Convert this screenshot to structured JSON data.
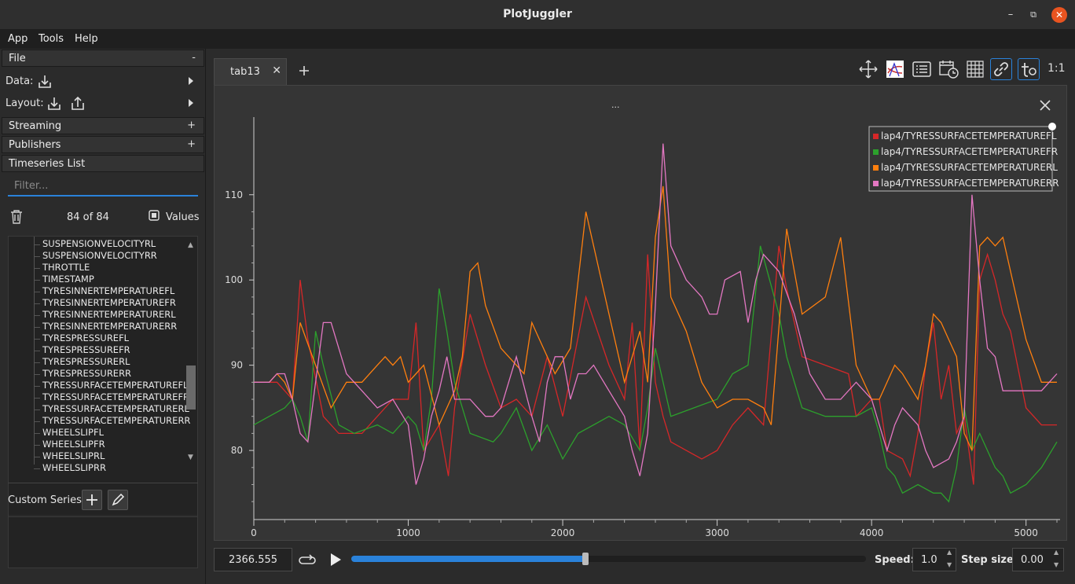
{
  "window": {
    "title": "PlotJuggler"
  },
  "menu": {
    "items": [
      "App",
      "Tools",
      "Help"
    ]
  },
  "left": {
    "file": {
      "label": "File",
      "toggle": "-"
    },
    "data_label": "Data:",
    "layout_label": "Layout:",
    "streaming": {
      "label": "Streaming",
      "toggle": "+"
    },
    "publishers": {
      "label": "Publishers",
      "toggle": "+"
    },
    "timeseries": {
      "label": "Timeseries List"
    },
    "filter_placeholder": "Filter...",
    "count": "84 of 84",
    "values_label": "Values",
    "series_items": [
      "SUSPENSIONVELOCITYRL",
      "SUSPENSIONVELOCITYRR",
      "THROTTLE",
      "TIMESTAMP",
      "TYRESINNERTEMPERATUREFL",
      "TYRESINNERTEMPERATUREFR",
      "TYRESINNERTEMPERATURERL",
      "TYRESINNERTEMPERATURERR",
      "TYRESPRESSUREFL",
      "TYRESPRESSUREFR",
      "TYRESPRESSURERL",
      "TYRESPRESSURERR",
      "TYRESSURFACETEMPERATUREFL",
      "TYRESSURFACETEMPERATUREFR",
      "TYRESSURFACETEMPERATURERL",
      "TYRESSURFACETEMPERATURERR",
      "WHEELSLIPFL",
      "WHEELSLIPFR",
      "WHEELSLIPRL",
      "WHEELSLIPRR"
    ],
    "custom_series_label": "Custom Series:"
  },
  "tabs": [
    {
      "label": "tab13"
    }
  ],
  "toolbar": {
    "ratio_label": "1:1",
    "plot_title": "..."
  },
  "playback": {
    "time": "2366.555",
    "speed_label": "Speed:",
    "speed": "1.0",
    "step_label": "Step size:",
    "step": "0.00",
    "progress": 0.455
  },
  "colors": {
    "accent": "#2a82da",
    "fl": "#d62728",
    "fr": "#2ca02c",
    "rl": "#ff7f0e",
    "rr": "#e377c2"
  },
  "chart_data": {
    "type": "line",
    "title": "",
    "xlabel": "",
    "ylabel": "",
    "xlim": [
      0,
      5200
    ],
    "ylim": [
      73,
      118
    ],
    "xticks": [
      0,
      1000,
      2000,
      3000,
      4000,
      5000
    ],
    "yticks": [
      80,
      90,
      100,
      110
    ],
    "legend_position": "top-right",
    "series": [
      {
        "name": "lap4/TYRESSURFACETEMPERATUREFL",
        "color": "#d62728",
        "x": [
          0,
          150,
          250,
          300,
          350,
          450,
          550,
          700,
          900,
          1000,
          1050,
          1100,
          1200,
          1260,
          1300,
          1400,
          1500,
          1600,
          1700,
          1800,
          1900,
          2000,
          2150,
          2300,
          2400,
          2450,
          2500,
          2550,
          2600,
          2650,
          2700,
          2800,
          2900,
          3000,
          3100,
          3200,
          3300,
          3400,
          3450,
          3550,
          3700,
          3850,
          3900,
          4000,
          4050,
          4100,
          4200,
          4250,
          4300,
          4350,
          4400,
          4450,
          4500,
          4550,
          4600,
          4660,
          4700,
          4750,
          4800,
          4850,
          4900,
          5000,
          5100,
          5200
        ],
        "values": [
          88,
          88,
          86,
          100,
          93,
          84,
          82,
          82,
          86,
          86,
          95,
          80,
          83,
          77,
          85,
          96,
          90,
          85,
          86,
          84,
          91,
          84,
          98,
          90,
          86,
          95,
          80,
          103,
          88,
          84,
          81,
          80,
          79,
          80,
          83,
          85,
          83,
          104,
          99,
          91,
          90,
          89,
          84,
          86,
          86,
          80,
          79,
          77,
          82,
          90,
          95,
          86,
          90,
          82,
          84,
          76,
          100,
          103,
          100,
          96,
          94,
          85,
          83,
          83
        ]
      },
      {
        "name": "lap4/TYRESSURFACETEMPERATUREFR",
        "color": "#2ca02c",
        "x": [
          0,
          100,
          200,
          250,
          300,
          350,
          400,
          450,
          550,
          650,
          800,
          900,
          1000,
          1050,
          1100,
          1150,
          1200,
          1250,
          1300,
          1400,
          1550,
          1600,
          1700,
          1800,
          1900,
          2000,
          2100,
          2300,
          2400,
          2500,
          2550,
          2600,
          2700,
          2850,
          3000,
          3100,
          3200,
          3280,
          3400,
          3450,
          3550,
          3700,
          3800,
          3900,
          4000,
          4050,
          4100,
          4150,
          4200,
          4300,
          4400,
          4450,
          4500,
          4550,
          4600,
          4650,
          4700,
          4800,
          4850,
          4900,
          5000,
          5100,
          5200
        ],
        "values": [
          83,
          84,
          85,
          86,
          84,
          81,
          94,
          90,
          83,
          82,
          83,
          82,
          84,
          83,
          80,
          86,
          99,
          94,
          88,
          82,
          81,
          82,
          85,
          80,
          83,
          79,
          82,
          84,
          83,
          80,
          85,
          92,
          84,
          85,
          86,
          89,
          90,
          104,
          96,
          91,
          85,
          84,
          84,
          84,
          85,
          82,
          78,
          77,
          75,
          76,
          75,
          75,
          74,
          78,
          85,
          80,
          82,
          78,
          77,
          75,
          76,
          78,
          81
        ]
      },
      {
        "name": "lap4/TYRESSURFACETEMPERATURERL",
        "color": "#ff7f0e",
        "x": [
          0,
          100,
          150,
          200,
          250,
          300,
          400,
          500,
          600,
          700,
          800,
          850,
          900,
          950,
          1000,
          1050,
          1100,
          1200,
          1250,
          1300,
          1350,
          1400,
          1450,
          1500,
          1600,
          1700,
          1750,
          1800,
          1850,
          1950,
          2050,
          2150,
          2300,
          2400,
          2500,
          2550,
          2600,
          2650,
          2700,
          2800,
          2900,
          3000,
          3100,
          3200,
          3300,
          3350,
          3450,
          3550,
          3700,
          3800,
          3900,
          4000,
          4050,
          4150,
          4200,
          4300,
          4350,
          4400,
          4450,
          4500,
          4550,
          4600,
          4650,
          4700,
          4750,
          4800,
          4850,
          4900,
          5000,
          5100,
          5200
        ],
        "values": [
          88,
          88,
          89,
          88,
          86,
          95,
          90,
          85,
          88,
          88,
          90,
          91,
          90,
          91,
          88,
          89,
          90,
          83,
          85,
          87,
          91,
          101,
          102,
          97,
          92,
          90,
          89,
          95,
          93,
          89,
          92,
          108,
          96,
          88,
          94,
          88,
          105,
          111,
          98,
          94,
          88,
          85,
          86,
          86,
          85,
          83,
          106,
          96,
          98,
          105,
          90,
          86,
          86,
          90,
          89,
          86,
          90,
          96,
          95,
          93,
          91,
          82,
          80,
          104,
          105,
          104,
          105,
          101,
          93,
          88,
          88
        ]
      },
      {
        "name": "lap4/TYRESSURFACETEMPERATURERR",
        "color": "#e377c2",
        "x": [
          0,
          100,
          150,
          200,
          250,
          300,
          350,
          450,
          500,
          600,
          700,
          800,
          900,
          1000,
          1050,
          1100,
          1150,
          1200,
          1250,
          1300,
          1400,
          1450,
          1500,
          1550,
          1600,
          1700,
          1800,
          1850,
          1900,
          1950,
          2000,
          2050,
          2100,
          2150,
          2200,
          2300,
          2400,
          2450,
          2500,
          2550,
          2600,
          2650,
          2700,
          2800,
          2900,
          2950,
          3000,
          3050,
          3150,
          3200,
          3250,
          3300,
          3400,
          3500,
          3600,
          3700,
          3800,
          3900,
          4000,
          4050,
          4100,
          4150,
          4200,
          4300,
          4350,
          4400,
          4500,
          4550,
          4600,
          4650,
          4700,
          4750,
          4800,
          4850,
          4900,
          5000,
          5100,
          5200
        ],
        "values": [
          88,
          88,
          89,
          89,
          86,
          82,
          81,
          95,
          95,
          89,
          87,
          85,
          86,
          83,
          76,
          79,
          84,
          87,
          91,
          86,
          86,
          85,
          84,
          84,
          85,
          91,
          84,
          81,
          88,
          91,
          91,
          86,
          89,
          89,
          90,
          87,
          84,
          80,
          77,
          82,
          97,
          116,
          104,
          100,
          98,
          96,
          96,
          100,
          101,
          95,
          100,
          103,
          101,
          96,
          89,
          86,
          86,
          88,
          86,
          83,
          80,
          83,
          85,
          83,
          80,
          78,
          79,
          81,
          84,
          110,
          100,
          92,
          91,
          87,
          87,
          87,
          87,
          89
        ]
      }
    ]
  }
}
